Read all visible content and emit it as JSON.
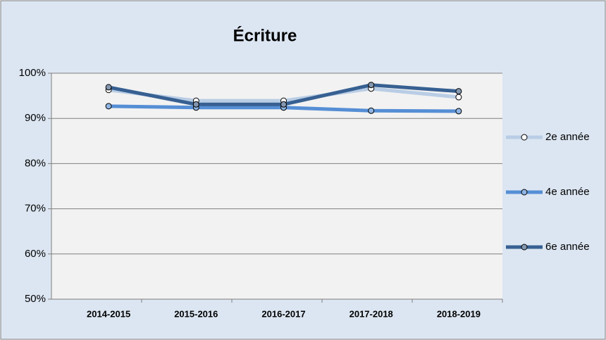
{
  "chart_data": {
    "type": "line",
    "title": "Écriture",
    "categories": [
      "2014-2015",
      "2015-2016",
      "2016-2017",
      "2017-2018",
      "2018-2019"
    ],
    "series": [
      {
        "name": "2e année",
        "color": "#b9cde5",
        "marker_fill": "#ffffff",
        "values": [
          96.3,
          93.9,
          93.9,
          96.6,
          94.7
        ]
      },
      {
        "name": "4e année",
        "color": "#558ed5",
        "marker_fill": "#8eb4e3",
        "values": [
          92.7,
          92.4,
          92.4,
          91.7,
          91.6
        ]
      },
      {
        "name": "6e année",
        "color": "#376092",
        "marker_fill": "#8497b0",
        "values": [
          96.9,
          93.1,
          93.1,
          97.4,
          96.0
        ]
      }
    ],
    "ylim": [
      50,
      100
    ],
    "yticks": [
      {
        "value": 50,
        "label": "50%"
      },
      {
        "value": 60,
        "label": "60%"
      },
      {
        "value": 70,
        "label": "70%"
      },
      {
        "value": 80,
        "label": "80%"
      },
      {
        "value": 90,
        "label": "90%"
      },
      {
        "value": 100,
        "label": "100%"
      }
    ],
    "grid": true,
    "legend": "right"
  }
}
